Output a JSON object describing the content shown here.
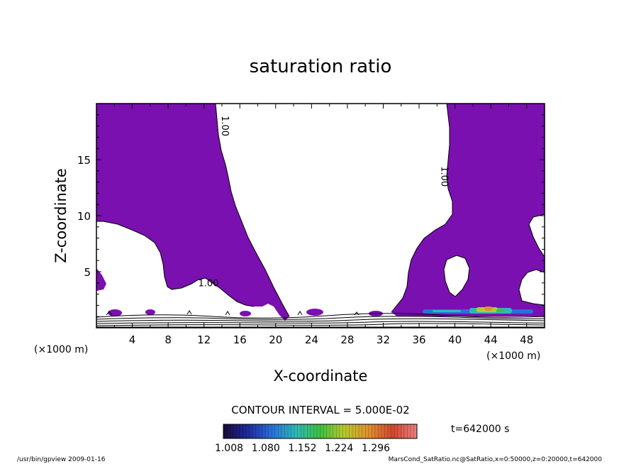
{
  "chart_data": {
    "type": "heatmap",
    "title": "saturation ratio",
    "xlabel": "X-coordinate",
    "ylabel": "Z-coordinate",
    "x_unit_left": "(×1000 m)",
    "x_unit_right": "(×1000 m)",
    "xlim": [
      0,
      50
    ],
    "ylim": [
      0,
      20
    ],
    "x_ticks": [
      4,
      8,
      12,
      16,
      20,
      24,
      28,
      32,
      36,
      40,
      44,
      48
    ],
    "y_ticks": [
      5,
      10,
      15
    ],
    "contour_labels": [
      {
        "text": "1.00",
        "x": 14,
        "y": 18
      },
      {
        "text": "1.00",
        "x": 38.5,
        "y": 13.5
      },
      {
        "text": "1.00",
        "x": 12.5,
        "y": 3.7
      }
    ],
    "region_color": "#7a10b0",
    "contour_interval": "CONTOUR INTERVAL = 5.000E-02",
    "colorbar": {
      "labels": [
        "1.008",
        "1.080",
        "1.152",
        "1.224",
        "1.296"
      ],
      "colors": [
        "#1a0a3a",
        "#1e2a9a",
        "#2a70d8",
        "#30b8b8",
        "#40c040",
        "#b8c830",
        "#e09030",
        "#d04830",
        "#e88080"
      ]
    },
    "time_label": "t=642000 s",
    "footer_left": "/usr/bin/gpview   2009-01-16",
    "footer_right": "MarsCond_SatRatio.nc@SatRatio,x=0:50000,z=0:20000,t=642000"
  }
}
